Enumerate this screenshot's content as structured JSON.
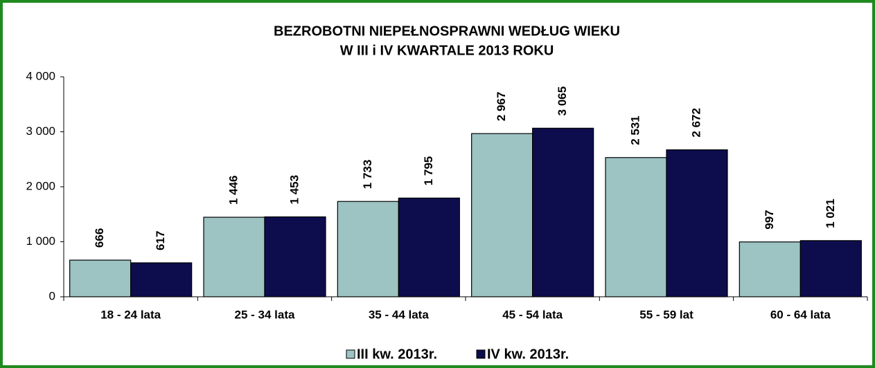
{
  "chart_data": {
    "type": "bar",
    "title": [
      "BEZROBOTNI NIEPEŁNOSPRAWNI WEDŁUG  WIEKU",
      "W III i IV KWARTALE 2013 ROKU"
    ],
    "categories": [
      "18 - 24 lata",
      "25 - 34 lata",
      "35 - 44 lata",
      "45 - 54 lata",
      "55 - 59 lat",
      "60 - 64 lata"
    ],
    "series": [
      {
        "name": "III kw. 2013r.",
        "color": "#9dc3c3",
        "values": [
          666,
          1446,
          1733,
          2967,
          2531,
          997
        ],
        "value_labels": [
          "666",
          "1 446",
          "1 733",
          "2 967",
          "2 531",
          "997"
        ]
      },
      {
        "name": "IV kw. 2013r.",
        "color": "#0d0d4d",
        "values": [
          617,
          1453,
          1795,
          3065,
          2672,
          1021
        ],
        "value_labels": [
          "617",
          "1 453",
          "1 795",
          "3 065",
          "2 672",
          "1 021"
        ]
      }
    ],
    "ylim": [
      0,
      4000
    ],
    "yticks": [
      0,
      {
        "value": 1000,
        "label": "1 000"
      },
      {
        "value": 2000,
        "label": "2 000"
      },
      {
        "value": 3000,
        "label": "3 000"
      },
      {
        "value": 4000,
        "label": "4 000"
      }
    ],
    "legend": "bottom"
  }
}
